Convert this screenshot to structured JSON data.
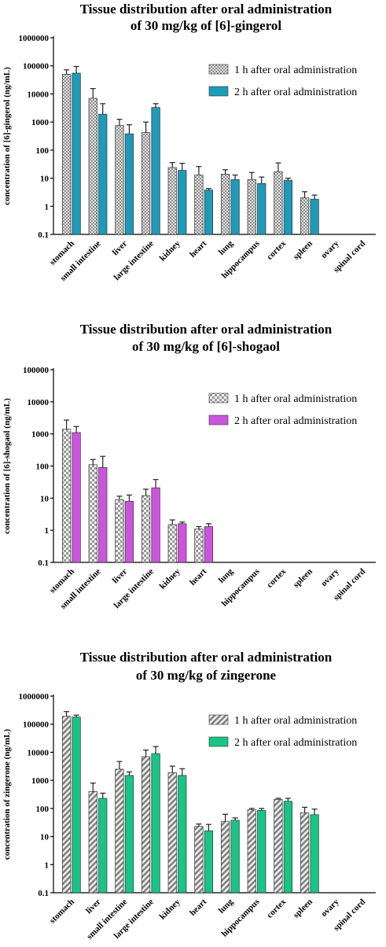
{
  "chart_data": [
    {
      "type": "bar",
      "title": [
        "Tissue distribution after oral administration",
        "of 30 mg/kg of [6]-gingerol"
      ],
      "ylabel": "concentration of [6]-gingerol (ng/mL)",
      "yscale": "log",
      "ylim": [
        0.1,
        1000000
      ],
      "yticks": [
        "0.1",
        "1",
        "10",
        "100",
        "1000",
        "10000",
        "100000",
        "1000000"
      ],
      "categories": [
        "stomach",
        "small intestine",
        "liver",
        "large intestine",
        "kidney",
        "heart",
        "lung",
        "hippocampus",
        "cortex",
        "spleen",
        "ovary",
        "spinal cord"
      ],
      "legend_position": "top-right",
      "series": [
        {
          "name": "1 h after oral administration",
          "pattern": "checker",
          "color": "#b0b0b0",
          "values": [
            50000,
            7000,
            750,
            420,
            24,
            13,
            14,
            9,
            17,
            2,
            null,
            null
          ],
          "errors_upper": [
            72000,
            15500,
            1250,
            1000,
            36,
            26,
            20,
            16,
            35,
            3.3,
            null,
            null
          ]
        },
        {
          "name": "2 h after oral administration",
          "pattern": "solid",
          "color": "#1d9bb8",
          "values": [
            55000,
            1900,
            380,
            3300,
            19,
            3.8,
            9,
            6.5,
            8.5,
            1.8,
            null,
            null
          ],
          "errors_upper": [
            95000,
            4500,
            800,
            4500,
            34,
            4.3,
            13,
            11,
            10,
            2.5,
            null,
            null
          ]
        }
      ]
    },
    {
      "type": "bar",
      "title": [
        "Tissue distribution after oral administration",
        "of 30 mg/kg of [6]-shogaol"
      ],
      "ylabel": "concentration of [6]-shogaol (ng/mL)",
      "yscale": "log",
      "ylim": [
        0.1,
        100000
      ],
      "yticks": [
        "0.1",
        "1",
        "10",
        "100",
        "1000",
        "10000",
        "100000"
      ],
      "categories": [
        "stomach",
        "small intestine",
        "liver",
        "large intestine",
        "kidney",
        "heart",
        "lung",
        "hippocampus",
        "cortex",
        "spleen",
        "ovary",
        "spinal cord"
      ],
      "legend_position": "top-right",
      "series": [
        {
          "name": "1 h after oral administration",
          "pattern": "checker-coarse",
          "color": "#a8a8a8",
          "values": [
            1400,
            110,
            9,
            12,
            1.5,
            1.1,
            null,
            null,
            null,
            null,
            null,
            null
          ],
          "errors_upper": [
            2700,
            160,
            11.5,
            19,
            2.1,
            1.3,
            null,
            null,
            null,
            null,
            null,
            null
          ]
        },
        {
          "name": "2 h after oral administration",
          "pattern": "solid",
          "color": "#cc55dd",
          "values": [
            1100,
            90,
            8,
            21,
            1.6,
            1.3,
            null,
            null,
            null,
            null,
            null,
            null
          ],
          "errors_upper": [
            1700,
            200,
            12.5,
            38,
            1.8,
            1.6,
            null,
            null,
            null,
            null,
            null,
            null
          ]
        }
      ]
    },
    {
      "type": "bar",
      "title": [
        "Tissue distribution after oral administration",
        "of 30 mg/kg of zingerone"
      ],
      "ylabel": "concentration of zingerone (ng/mL)",
      "yscale": "log",
      "ylim": [
        0.1,
        1000000
      ],
      "yticks": [
        "0.1",
        "1",
        "10",
        "100",
        "1000",
        "10000",
        "100000",
        "1000000"
      ],
      "categories": [
        "stomach",
        "liver",
        "small intestine",
        "large intestine",
        "kidney",
        "heart",
        "lung",
        "hippocampus",
        "cortex",
        "spleen",
        "ovary",
        "spinal cord"
      ],
      "legend_position": "top-right",
      "series": [
        {
          "name": "1 h after oral administration",
          "pattern": "diagonal",
          "color": "#8a8a8a",
          "values": [
            190000,
            400,
            2500,
            7000,
            1900,
            23,
            35,
            90,
            210,
            70,
            null,
            null
          ],
          "errors_upper": [
            280000,
            800,
            4700,
            12000,
            3200,
            28,
            62,
            100,
            230,
            110,
            null,
            null
          ]
        },
        {
          "name": "2 h after oral administration",
          "pattern": "solid",
          "color": "#18c486",
          "values": [
            180000,
            230,
            1500,
            9000,
            1500,
            16,
            38,
            85,
            180,
            60,
            null,
            null
          ],
          "errors_upper": [
            210000,
            350,
            2000,
            16000,
            2600,
            27,
            46,
            100,
            230,
            95,
            null,
            null
          ]
        }
      ]
    }
  ]
}
